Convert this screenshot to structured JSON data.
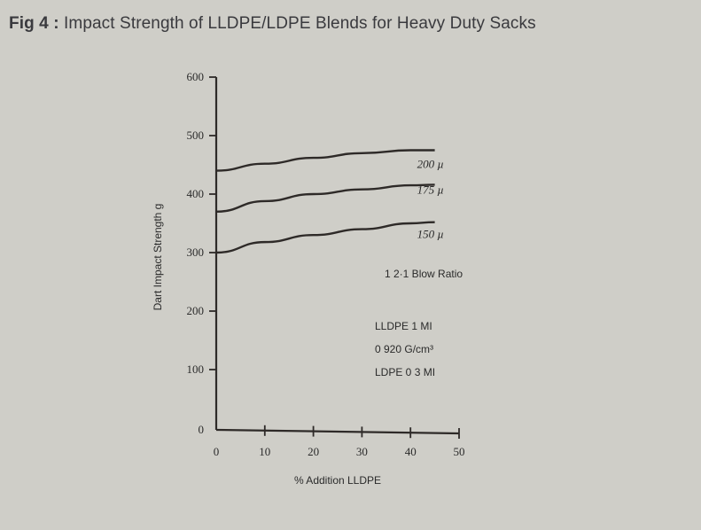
{
  "figure_label": "Fig 4 :",
  "title_text": "Impact Strength of LLDPE/LDPE Blends for Heavy Duty Sacks",
  "chart_data": {
    "type": "line",
    "title": "Fig 4 : Impact Strength of LLDPE/LDPE Blends for Heavy Duty Sacks",
    "xlabel": "% Addition LLDPE",
    "ylabel": "Dart Impact Strength  g",
    "xlim": [
      0,
      50
    ],
    "ylim": [
      0,
      600
    ],
    "xticks": [
      "0",
      "10",
      "20",
      "30",
      "40",
      "50"
    ],
    "yticks": [
      "0",
      "100",
      "200",
      "300",
      "400",
      "500",
      "600"
    ],
    "grid": false,
    "x": [
      0,
      10,
      20,
      30,
      40,
      45
    ],
    "series": [
      {
        "name": "200 µ",
        "values": [
          440,
          452,
          462,
          470,
          475,
          475
        ]
      },
      {
        "name": "175 µ",
        "values": [
          370,
          388,
          400,
          408,
          415,
          416
        ]
      },
      {
        "name": "150 µ",
        "values": [
          300,
          318,
          330,
          340,
          350,
          352
        ]
      }
    ],
    "annotations": [
      "1 2·1 Blow Ratio",
      "LLDPE 1 MI",
      "0 920 G/cm³",
      "LDPE 0 3 MI"
    ],
    "line_color": "#2e2a28"
  }
}
